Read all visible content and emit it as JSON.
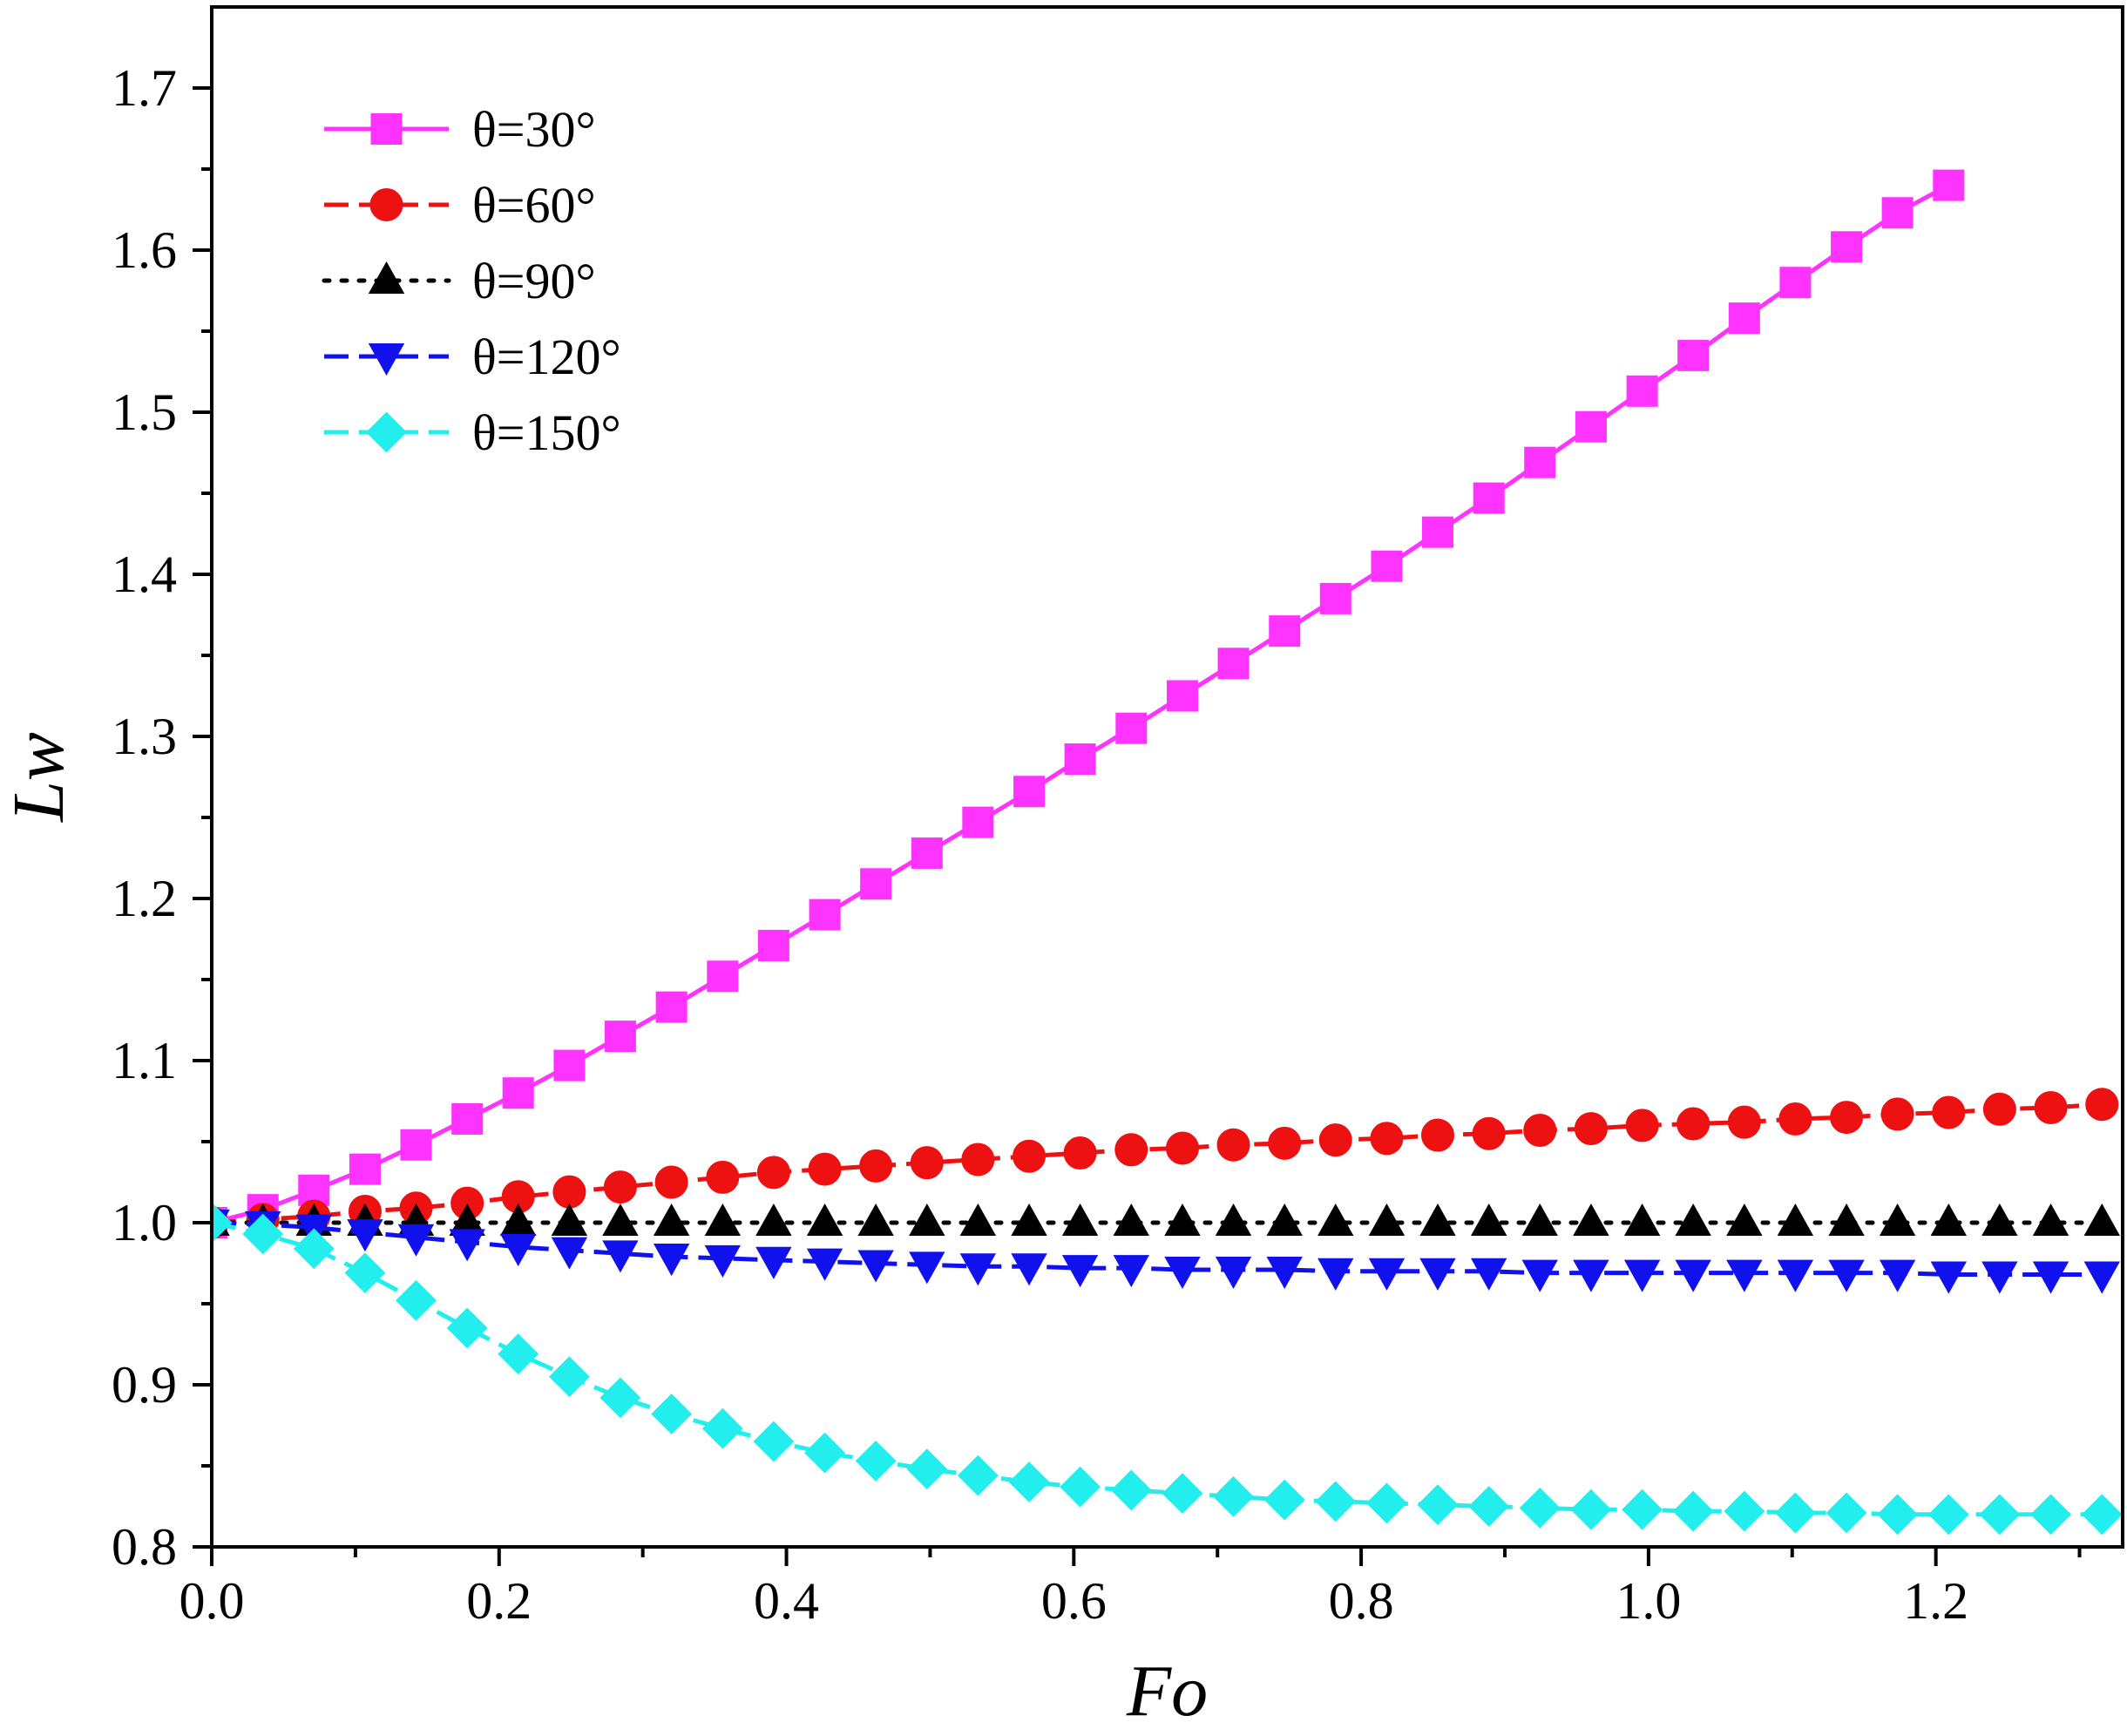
{
  "chart_data": {
    "type": "line",
    "title": "",
    "xlabel": "Fo",
    "ylabel": "Lw",
    "xlim": [
      0.0,
      1.33
    ],
    "ylim": [
      0.8,
      1.75
    ],
    "x_ticks": [
      0.0,
      0.2,
      0.4,
      0.6,
      0.8,
      1.0,
      1.2
    ],
    "x_tick_labels": [
      "0.0",
      "0.2",
      "0.4",
      "0.6",
      "0.8",
      "1.0",
      "1.2"
    ],
    "y_ticks": [
      0.8,
      0.9,
      1.0,
      1.1,
      1.2,
      1.3,
      1.4,
      1.5,
      1.6,
      1.7
    ],
    "y_tick_labels": [
      "0.8",
      "0.9",
      "1.0",
      "1.1",
      "1.2",
      "1.3",
      "1.4",
      "1.5",
      "1.6",
      "1.7"
    ],
    "legend_position": "top-left",
    "grid": false,
    "series": [
      {
        "name": "θ=30°",
        "color": "#FF33FF",
        "marker": "square",
        "line_style": "solid",
        "x": [
          0.0,
          0.0356,
          0.0711,
          0.1067,
          0.1422,
          0.1778,
          0.2133,
          0.2489,
          0.2844,
          0.32,
          0.3556,
          0.3911,
          0.4267,
          0.4622,
          0.4978,
          0.5333,
          0.5689,
          0.6044,
          0.64,
          0.6756,
          0.7111,
          0.7467,
          0.7822,
          0.8178,
          0.8533,
          0.8889,
          0.9244,
          0.96,
          0.9956,
          1.0311,
          1.0667,
          1.1022,
          1.1378,
          1.1733,
          1.2089
        ],
        "values": [
          1.0,
          1.008,
          1.02,
          1.033,
          1.048,
          1.064,
          1.08,
          1.097,
          1.115,
          1.133,
          1.152,
          1.171,
          1.19,
          1.209,
          1.228,
          1.247,
          1.266,
          1.286,
          1.305,
          1.325,
          1.345,
          1.365,
          1.385,
          1.405,
          1.426,
          1.447,
          1.469,
          1.491,
          1.513,
          1.535,
          1.558,
          1.58,
          1.602,
          1.623,
          1.64
        ]
      },
      {
        "name": "θ=60°",
        "color": "#EE1111",
        "marker": "circle",
        "line_style": "dash",
        "x": [
          0.0,
          0.0356,
          0.0711,
          0.1067,
          0.1422,
          0.1778,
          0.2133,
          0.2489,
          0.2844,
          0.32,
          0.3556,
          0.3911,
          0.4267,
          0.4622,
          0.4978,
          0.5333,
          0.5689,
          0.6044,
          0.64,
          0.6756,
          0.7111,
          0.7467,
          0.7822,
          0.8178,
          0.8533,
          0.8889,
          0.9244,
          0.96,
          0.9956,
          1.0311,
          1.0667,
          1.1022,
          1.1378,
          1.1733,
          1.2089,
          1.2444,
          1.28,
          1.3156
        ],
        "values": [
          1.0,
          1.002,
          1.004,
          1.007,
          1.009,
          1.012,
          1.016,
          1.019,
          1.022,
          1.025,
          1.028,
          1.031,
          1.033,
          1.035,
          1.037,
          1.039,
          1.041,
          1.043,
          1.045,
          1.046,
          1.048,
          1.049,
          1.051,
          1.052,
          1.054,
          1.055,
          1.057,
          1.058,
          1.06,
          1.061,
          1.062,
          1.064,
          1.065,
          1.067,
          1.068,
          1.07,
          1.071,
          1.073
        ]
      },
      {
        "name": "θ=90°",
        "color": "#000000",
        "marker": "triangle-up",
        "line_style": "dot",
        "x": [
          0.0,
          0.0356,
          0.0711,
          0.1067,
          0.1422,
          0.1778,
          0.2133,
          0.2489,
          0.2844,
          0.32,
          0.3556,
          0.3911,
          0.4267,
          0.4622,
          0.4978,
          0.5333,
          0.5689,
          0.6044,
          0.64,
          0.6756,
          0.7111,
          0.7467,
          0.7822,
          0.8178,
          0.8533,
          0.8889,
          0.9244,
          0.96,
          0.9956,
          1.0311,
          1.0667,
          1.1022,
          1.1378,
          1.1733,
          1.2089,
          1.2444,
          1.28,
          1.3156
        ],
        "values": [
          1.0,
          1.0,
          1.0,
          1.0,
          1.0,
          1.0,
          1.0,
          1.0,
          1.0,
          1.0,
          1.0,
          1.0,
          1.0,
          1.0,
          1.0,
          1.0,
          1.0,
          1.0,
          1.0,
          1.0,
          1.0,
          1.0,
          1.0,
          1.0,
          1.0,
          1.0,
          1.0,
          1.0,
          1.0,
          1.0,
          1.0,
          1.0,
          1.0,
          1.0,
          1.0,
          1.0,
          1.0,
          1.0
        ]
      },
      {
        "name": "θ=120°",
        "color": "#1111EE",
        "marker": "triangle-down",
        "line_style": "dash",
        "x": [
          0.0,
          0.0356,
          0.0711,
          0.1067,
          0.1422,
          0.1778,
          0.2133,
          0.2489,
          0.2844,
          0.32,
          0.3556,
          0.3911,
          0.4267,
          0.4622,
          0.4978,
          0.5333,
          0.5689,
          0.6044,
          0.64,
          0.6756,
          0.7111,
          0.7467,
          0.7822,
          0.8178,
          0.8533,
          0.8889,
          0.9244,
          0.96,
          0.9956,
          1.0311,
          1.0667,
          1.1022,
          1.1378,
          1.1733,
          1.2089,
          1.2444,
          1.28,
          1.3156
        ],
        "values": [
          1.0,
          0.999,
          0.997,
          0.994,
          0.991,
          0.988,
          0.985,
          0.983,
          0.981,
          0.979,
          0.978,
          0.977,
          0.976,
          0.975,
          0.974,
          0.973,
          0.973,
          0.972,
          0.972,
          0.971,
          0.971,
          0.971,
          0.97,
          0.97,
          0.97,
          0.97,
          0.969,
          0.969,
          0.969,
          0.969,
          0.969,
          0.969,
          0.969,
          0.969,
          0.968,
          0.968,
          0.968,
          0.968
        ]
      },
      {
        "name": "θ=150°",
        "color": "#22EEEE",
        "marker": "diamond",
        "line_style": "dash",
        "x": [
          0.0,
          0.0356,
          0.0711,
          0.1067,
          0.1422,
          0.1778,
          0.2133,
          0.2489,
          0.2844,
          0.32,
          0.3556,
          0.3911,
          0.4267,
          0.4622,
          0.4978,
          0.5333,
          0.5689,
          0.6044,
          0.64,
          0.6756,
          0.7111,
          0.7467,
          0.7822,
          0.8178,
          0.8533,
          0.8889,
          0.9244,
          0.96,
          0.9956,
          1.0311,
          1.0667,
          1.1022,
          1.1378,
          1.1733,
          1.2089,
          1.2444,
          1.28,
          1.3156
        ],
        "values": [
          1.0,
          0.993,
          0.984,
          0.969,
          0.952,
          0.935,
          0.919,
          0.905,
          0.892,
          0.882,
          0.873,
          0.865,
          0.858,
          0.853,
          0.848,
          0.844,
          0.84,
          0.837,
          0.835,
          0.833,
          0.831,
          0.829,
          0.828,
          0.827,
          0.826,
          0.825,
          0.824,
          0.823,
          0.823,
          0.822,
          0.822,
          0.821,
          0.821,
          0.82,
          0.82,
          0.82,
          0.82,
          0.82
        ]
      }
    ]
  }
}
